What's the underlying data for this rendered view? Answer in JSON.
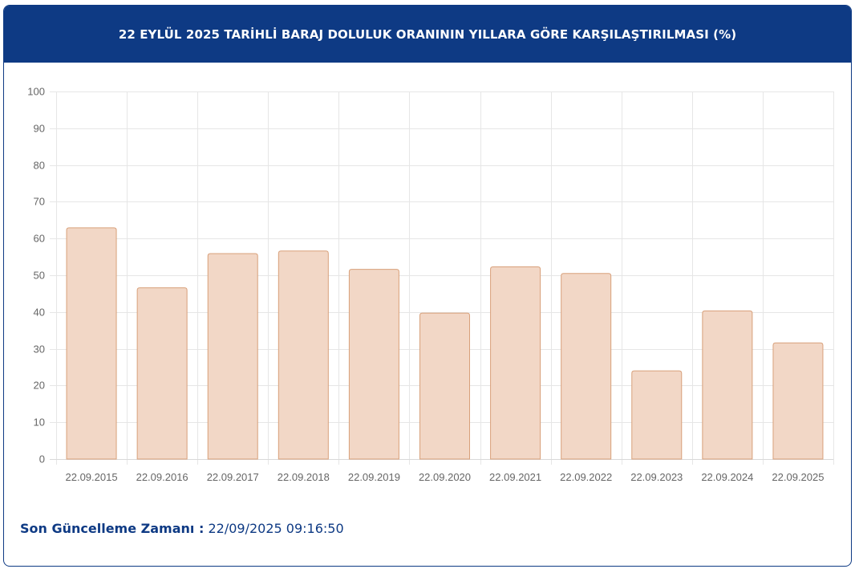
{
  "header": {
    "title": "22 EYLÜL 2025 TARİHLİ BARAJ DOLULUK ORANININ YILLARA GÖRE KARŞILAŞTIRILMASI (%)"
  },
  "footer": {
    "label": "Son Güncelleme Zamanı :",
    "value": "22/09/2025 09:16:50"
  },
  "colors": {
    "header_bg": "#0e3a84",
    "bar_fill": "#f2d7c6",
    "bar_stroke": "#d8a07a",
    "grid": "#e6e6e6",
    "tick_text": "#666666"
  },
  "chart_data": {
    "type": "bar",
    "categories": [
      "22.09.2015",
      "22.09.2016",
      "22.09.2017",
      "22.09.2018",
      "22.09.2019",
      "22.09.2020",
      "22.09.2021",
      "22.09.2022",
      "22.09.2023",
      "22.09.2024",
      "22.09.2025"
    ],
    "values": [
      62.9,
      46.6,
      55.9,
      56.6,
      51.6,
      39.7,
      52.3,
      50.5,
      24.0,
      40.3,
      31.6
    ],
    "ylim": [
      0,
      100
    ],
    "yticks": [
      0,
      10,
      20,
      30,
      40,
      50,
      60,
      70,
      80,
      90,
      100
    ],
    "grid": true,
    "legend": "none",
    "title": "",
    "xlabel": "",
    "ylabel": ""
  }
}
